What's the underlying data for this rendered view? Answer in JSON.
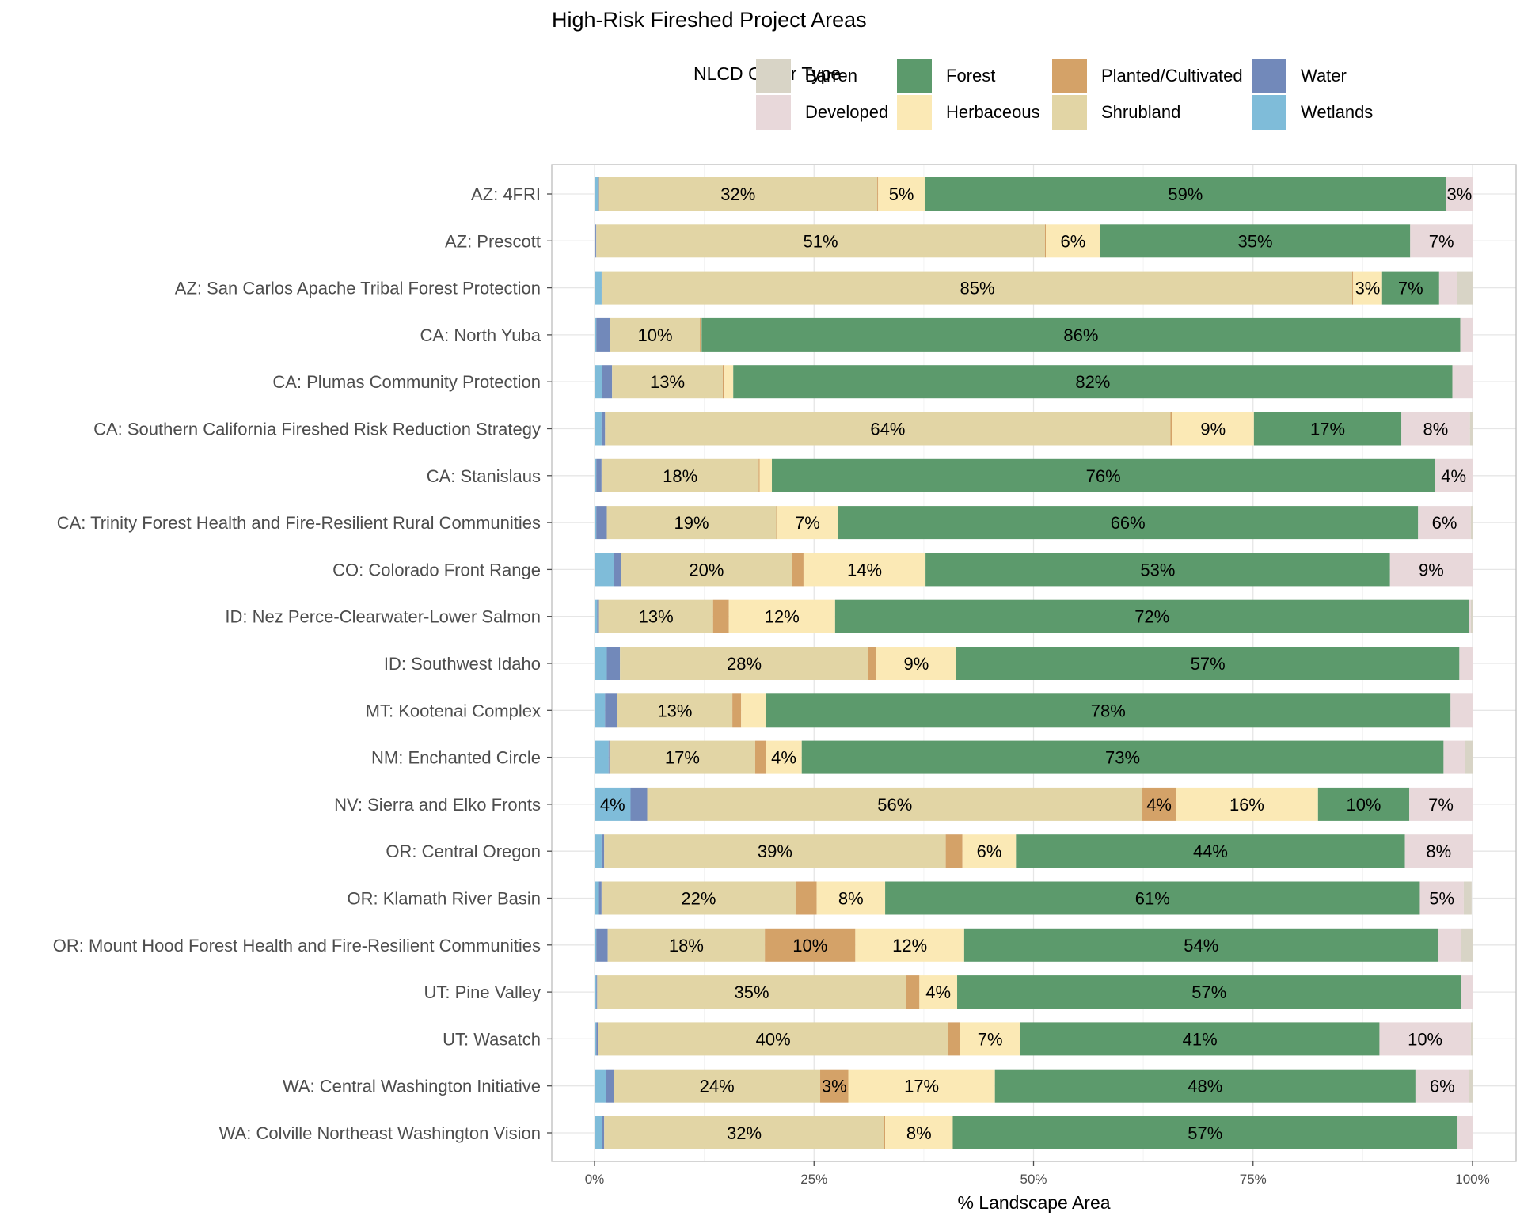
{
  "chart_data": {
    "type": "bar",
    "orientation": "horizontal",
    "stacked": true,
    "title": "High-Risk Fireshed Project Areas",
    "xlabel": "% Landscape Area",
    "ylabel": "",
    "xlim": [
      0,
      1
    ],
    "x_ticks": [
      "0%",
      "25%",
      "50%",
      "75%",
      "100%"
    ],
    "grid": true,
    "legend": {
      "title": "NLCD Cover Type",
      "position": "top",
      "entries": [
        "Barren",
        "Developed",
        "Forest",
        "Herbaceous",
        "Planted/Cultivated",
        "Shrubland",
        "Water",
        "Wetlands"
      ]
    },
    "stack_order": [
      "Wetlands",
      "Water",
      "Shrubland",
      "Planted/Cultivated",
      "Herbaceous",
      "Forest",
      "Developed",
      "Barren"
    ],
    "colors": {
      "Barren": "#d8d4c6",
      "Developed": "#e8d8da",
      "Forest": "#5c9a6c",
      "Herbaceous": "#fbe9b5",
      "Planted/Cultivated": "#d4a268",
      "Shrubland": "#e2d5a5",
      "Water": "#7289ba",
      "Wetlands": "#7fbcd9"
    },
    "categories": [
      "AZ: 4FRI",
      "AZ: Prescott",
      "AZ: San Carlos Apache Tribal Forest Protection",
      "CA: North Yuba",
      "CA: Plumas Community Protection",
      "CA: Southern California Fireshed Risk Reduction Strategy",
      "CA: Stanislaus",
      "CA: Trinity Forest Health and Fire-Resilient Rural Communities",
      "CO: Colorado Front Range",
      "ID: Nez Perce-Clearwater-Lower Salmon",
      "ID: Southwest Idaho",
      "MT: Kootenai Complex",
      "NM: Enchanted Circle",
      "NV: Sierra and Elko Fronts",
      "OR: Central Oregon",
      "OR: Klamath River Basin",
      "OR: Mount Hood Forest Health and Fire-Resilient Communities",
      "UT: Pine Valley",
      "UT: Wasatch",
      "WA: Central Washington Initiative",
      "WA: Colville Northeast Washington Vision"
    ],
    "series": [
      {
        "name": "Wetlands",
        "values": [
          0.004,
          0.001,
          0.008,
          0.002,
          0.009,
          0.008,
          0.002,
          0.002,
          0.022,
          0.003,
          0.014,
          0.012,
          0.016,
          0.041,
          0.008,
          0.005,
          0.002,
          0.002,
          0.002,
          0.013,
          0.009
        ]
      },
      {
        "name": "Water",
        "values": [
          0.001,
          0.001,
          0.001,
          0.016,
          0.011,
          0.004,
          0.006,
          0.012,
          0.008,
          0.002,
          0.015,
          0.014,
          0.001,
          0.019,
          0.003,
          0.003,
          0.013,
          0.001,
          0.002,
          0.009,
          0.002
        ]
      },
      {
        "name": "Shrubland",
        "values": [
          0.317,
          0.511,
          0.854,
          0.102,
          0.126,
          0.644,
          0.179,
          0.193,
          0.195,
          0.13,
          0.283,
          0.131,
          0.166,
          0.564,
          0.389,
          0.221,
          0.179,
          0.352,
          0.399,
          0.235,
          0.319
        ]
      },
      {
        "name": "Planted/Cultivated",
        "values": [
          0.001,
          0.001,
          0.001,
          0.001,
          0.002,
          0.002,
          0.001,
          0.001,
          0.013,
          0.018,
          0.009,
          0.01,
          0.012,
          0.038,
          0.019,
          0.024,
          0.103,
          0.015,
          0.013,
          0.032,
          0.001
        ]
      },
      {
        "name": "Herbaceous",
        "values": [
          0.053,
          0.062,
          0.033,
          0.001,
          0.01,
          0.093,
          0.014,
          0.069,
          0.139,
          0.121,
          0.091,
          0.028,
          0.041,
          0.162,
          0.061,
          0.078,
          0.124,
          0.043,
          0.069,
          0.167,
          0.077
        ]
      },
      {
        "name": "Forest",
        "values": [
          0.594,
          0.353,
          0.065,
          0.864,
          0.819,
          0.168,
          0.755,
          0.661,
          0.529,
          0.722,
          0.573,
          0.78,
          0.731,
          0.104,
          0.443,
          0.609,
          0.54,
          0.574,
          0.409,
          0.479,
          0.575
        ]
      },
      {
        "name": "Developed",
        "values": [
          0.03,
          0.071,
          0.02,
          0.014,
          0.023,
          0.078,
          0.043,
          0.06,
          0.094,
          0.002,
          0.015,
          0.025,
          0.024,
          0.072,
          0.077,
          0.05,
          0.026,
          0.013,
          0.104,
          0.061,
          0.017
        ]
      },
      {
        "name": "Barren",
        "values": [
          0.0,
          0.0,
          0.018,
          0.0,
          0.0,
          0.003,
          0.0,
          0.002,
          0.0,
          0.002,
          0.0,
          0.0,
          0.009,
          0.0,
          0.0,
          0.009,
          0.013,
          0.0,
          0.002,
          0.004,
          0.0
        ]
      }
    ],
    "data_labels_shown": "segments >= 3%"
  }
}
